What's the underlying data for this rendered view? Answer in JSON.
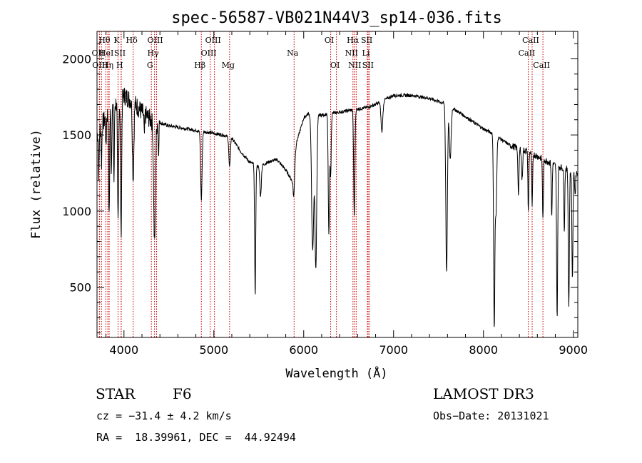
{
  "chart_data": {
    "type": "line",
    "title": "spec-56587-VB021N44V3_sp14-036.fits",
    "xlabel": "Wavelength (Å)",
    "ylabel": "Flux (relative)",
    "xlim": [
      3700,
      9050
    ],
    "ylim": [
      170,
      2180
    ],
    "xticks": [
      4000,
      5000,
      6000,
      7000,
      8000,
      9000
    ],
    "yticks": [
      500,
      1000,
      1500,
      2000
    ],
    "line_color": "#000000",
    "marker_color": "#cc0000",
    "continuum": [
      [
        3700,
        1500
      ],
      [
        3800,
        1620
      ],
      [
        3900,
        1700
      ],
      [
        4000,
        1760
      ],
      [
        4100,
        1720
      ],
      [
        4200,
        1650
      ],
      [
        4300,
        1600
      ],
      [
        4500,
        1560
      ],
      [
        4700,
        1540
      ],
      [
        4800,
        1530
      ],
      [
        4900,
        1520
      ],
      [
        5000,
        1510
      ],
      [
        5100,
        1500
      ],
      [
        5200,
        1480
      ],
      [
        5300,
        1390
      ],
      [
        5400,
        1320
      ],
      [
        5500,
        1290
      ],
      [
        5600,
        1320
      ],
      [
        5700,
        1340
      ],
      [
        5800,
        1270
      ],
      [
        5870,
        1200
      ],
      [
        5920,
        1450
      ],
      [
        6000,
        1610
      ],
      [
        6050,
        1640
      ],
      [
        6200,
        1630
      ],
      [
        6300,
        1640
      ],
      [
        6400,
        1650
      ],
      [
        6500,
        1660
      ],
      [
        6600,
        1670
      ],
      [
        6700,
        1680
      ],
      [
        6800,
        1700
      ],
      [
        6900,
        1730
      ],
      [
        7000,
        1760
      ],
      [
        7200,
        1760
      ],
      [
        7400,
        1740
      ],
      [
        7600,
        1700
      ],
      [
        7700,
        1660
      ],
      [
        7800,
        1620
      ],
      [
        7900,
        1580
      ],
      [
        8000,
        1540
      ],
      [
        8100,
        1510
      ],
      [
        8200,
        1470
      ],
      [
        8300,
        1430
      ],
      [
        8400,
        1410
      ],
      [
        8500,
        1390
      ],
      [
        8600,
        1360
      ],
      [
        8700,
        1330
      ],
      [
        8800,
        1300
      ],
      [
        8900,
        1280
      ],
      [
        9000,
        1260
      ],
      [
        9050,
        1250
      ]
    ],
    "absorption": [
      [
        3720,
        300,
        4
      ],
      [
        3750,
        250,
        4
      ],
      [
        3800,
        200,
        4
      ],
      [
        3835,
        700,
        5
      ],
      [
        3860,
        400,
        4
      ],
      [
        3889,
        500,
        4
      ],
      [
        3934,
        800,
        6
      ],
      [
        3968,
        900,
        6
      ],
      [
        4102,
        500,
        8
      ],
      [
        4226,
        150,
        4
      ],
      [
        4340,
        800,
        10
      ],
      [
        4384,
        200,
        4
      ],
      [
        4861,
        450,
        8
      ],
      [
        5175,
        200,
        8
      ],
      [
        5460,
        850,
        6
      ],
      [
        5520,
        200,
        8
      ],
      [
        5890,
        200,
        8
      ],
      [
        6100,
        900,
        12
      ],
      [
        6135,
        1000,
        10
      ],
      [
        6280,
        800,
        7
      ],
      [
        6300,
        400,
        6
      ],
      [
        6563,
        700,
        7
      ],
      [
        6870,
        200,
        10
      ],
      [
        7590,
        1100,
        9
      ],
      [
        7630,
        350,
        10
      ],
      [
        8120,
        1250,
        7
      ],
      [
        8140,
        500,
        8
      ],
      [
        8390,
        300,
        6
      ],
      [
        8430,
        200,
        6
      ],
      [
        8500,
        400,
        5
      ],
      [
        8542,
        350,
        5
      ],
      [
        8662,
        400,
        5
      ],
      [
        8760,
        350,
        5
      ],
      [
        8820,
        1000,
        6
      ],
      [
        8900,
        400,
        5
      ],
      [
        8950,
        900,
        6
      ],
      [
        8990,
        700,
        6
      ],
      [
        9020,
        150,
        5
      ]
    ],
    "spectral_lines": [
      {
        "label": "Hθ",
        "wavelength": 3798,
        "row": 1
      },
      {
        "label": "OII",
        "wavelength": 3727,
        "row": 2
      },
      {
        "label": "OIII",
        "wavelength": 3750,
        "row": 3
      },
      {
        "label": "HeI",
        "wavelength": 3820,
        "row": 2
      },
      {
        "label": "Hη",
        "wavelength": 3835,
        "row": 3
      },
      {
        "label": "K",
        "wavelength": 3934,
        "row": 1
      },
      {
        "label": "SII",
        "wavelength": 3970,
        "row": 2
      },
      {
        "label": "H",
        "wavelength": 3968,
        "row": 3
      },
      {
        "label": "Hδ",
        "wavelength": 4102,
        "row": 1
      },
      {
        "label": "OIII",
        "wavelength": 4363,
        "row": 1
      },
      {
        "label": "Hγ",
        "wavelength": 4340,
        "row": 2
      },
      {
        "label": "G",
        "wavelength": 4305,
        "row": 3
      },
      {
        "label": "Hβ",
        "wavelength": 4861,
        "row": 3
      },
      {
        "label": "OIII",
        "wavelength": 5007,
        "row": 1
      },
      {
        "label": "OIII",
        "wavelength": 4959,
        "row": 2
      },
      {
        "label": "Mg",
        "wavelength": 5175,
        "row": 3
      },
      {
        "label": "Na",
        "wavelength": 5893,
        "row": 2
      },
      {
        "label": "OI",
        "wavelength": 6300,
        "row": 1
      },
      {
        "label": "OI",
        "wavelength": 6364,
        "row": 3
      },
      {
        "label": "Hα",
        "wavelength": 6563,
        "row": 1
      },
      {
        "label": "NII",
        "wavelength": 6548,
        "row": 2
      },
      {
        "label": "NII",
        "wavelength": 6584,
        "row": 3
      },
      {
        "label": "SII",
        "wavelength": 6717,
        "row": 1
      },
      {
        "label": "Li",
        "wavelength": 6708,
        "row": 2
      },
      {
        "label": "SII",
        "wavelength": 6731,
        "row": 3
      },
      {
        "label": "CaII",
        "wavelength": 8542,
        "row": 1
      },
      {
        "label": "CaII",
        "wavelength": 8498,
        "row": 2
      },
      {
        "label": "CaII",
        "wavelength": 8662,
        "row": 3
      }
    ]
  },
  "info": {
    "object_class": "STAR",
    "subclass": "F6",
    "survey": "LAMOST DR3",
    "redshift": "cz = −31.4 ± 4.2 km/s",
    "obs_date": "Obs−Date: 20131021",
    "coords": "RA =  18.39961, DEC =  44.92494"
  }
}
